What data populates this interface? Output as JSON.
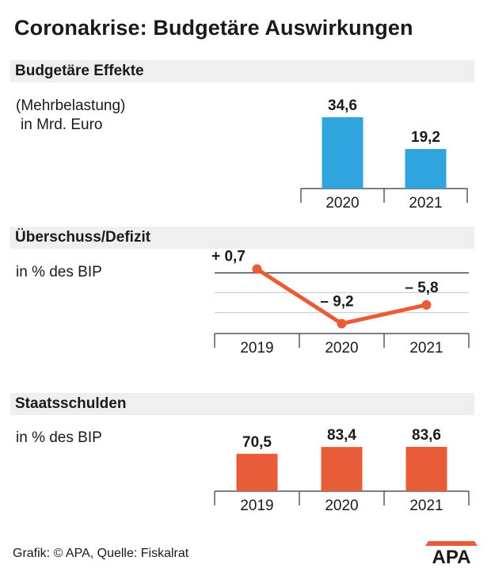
{
  "title": "Coronakrise: Budgetäre Auswirkungen",
  "colors": {
    "blue": "#2fa4dd",
    "orange": "#e85c37",
    "section_bg": "#efefef",
    "axis": "#333333",
    "grid": "#c8c8c8"
  },
  "footer": {
    "source": "Grafik: © APA, Quelle: Fiskalrat",
    "logo_text": "APA"
  },
  "chart_data": [
    {
      "type": "bar",
      "title": "Budgetäre Effekte",
      "subtitle": "(Mehrbelastung)",
      "subtitle2": "in Mrd. Euro",
      "categories": [
        "2020",
        "2021"
      ],
      "values": [
        34.6,
        19.2
      ],
      "value_labels": [
        "34,6",
        "19,2"
      ],
      "ylim": [
        0,
        34.6
      ],
      "color": "#2fa4dd"
    },
    {
      "type": "line",
      "title": "Überschuss/Defizit",
      "subtitle": "in % des BIP",
      "categories": [
        "2019",
        "2020",
        "2021"
      ],
      "values": [
        0.7,
        -9.2,
        -5.8
      ],
      "value_labels": [
        "+ 0,7",
        "– 9,2",
        "– 5,8"
      ],
      "ylim": [
        -12,
        1.5
      ],
      "grid": true,
      "color": "#e85c37"
    },
    {
      "type": "bar",
      "title": "Staatsschulden",
      "subtitle": "in % des BIP",
      "categories": [
        "2019",
        "2020",
        "2021"
      ],
      "values": [
        70.5,
        83.4,
        83.6
      ],
      "value_labels": [
        "70,5",
        "83,4",
        "83,6"
      ],
      "ylim": [
        0,
        83.6
      ],
      "color": "#e85c37"
    }
  ]
}
